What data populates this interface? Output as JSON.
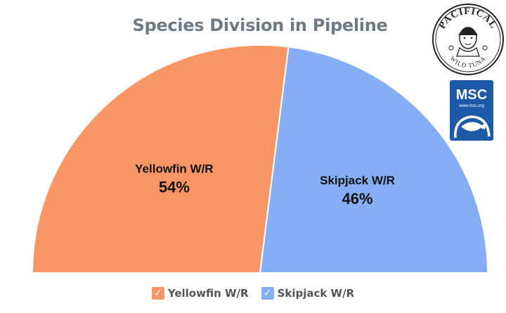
{
  "chart_data": {
    "type": "pie",
    "title": "Species Division in Pipeline",
    "half_donut": true,
    "slices": [
      {
        "name": "Yellowfin W/R",
        "value": 54,
        "label": "54%",
        "color": "#fa9566"
      },
      {
        "name": "Skipjack W/R",
        "value": 46,
        "label": "46%",
        "color": "#85aef5"
      }
    ],
    "legend_position": "bottom"
  },
  "logos": {
    "pacifical": {
      "brand_text": "PACIFICAL",
      "tagline": "WILD TUNA"
    },
    "msc": {
      "text": "MSC",
      "url": "www.msc.org"
    }
  }
}
